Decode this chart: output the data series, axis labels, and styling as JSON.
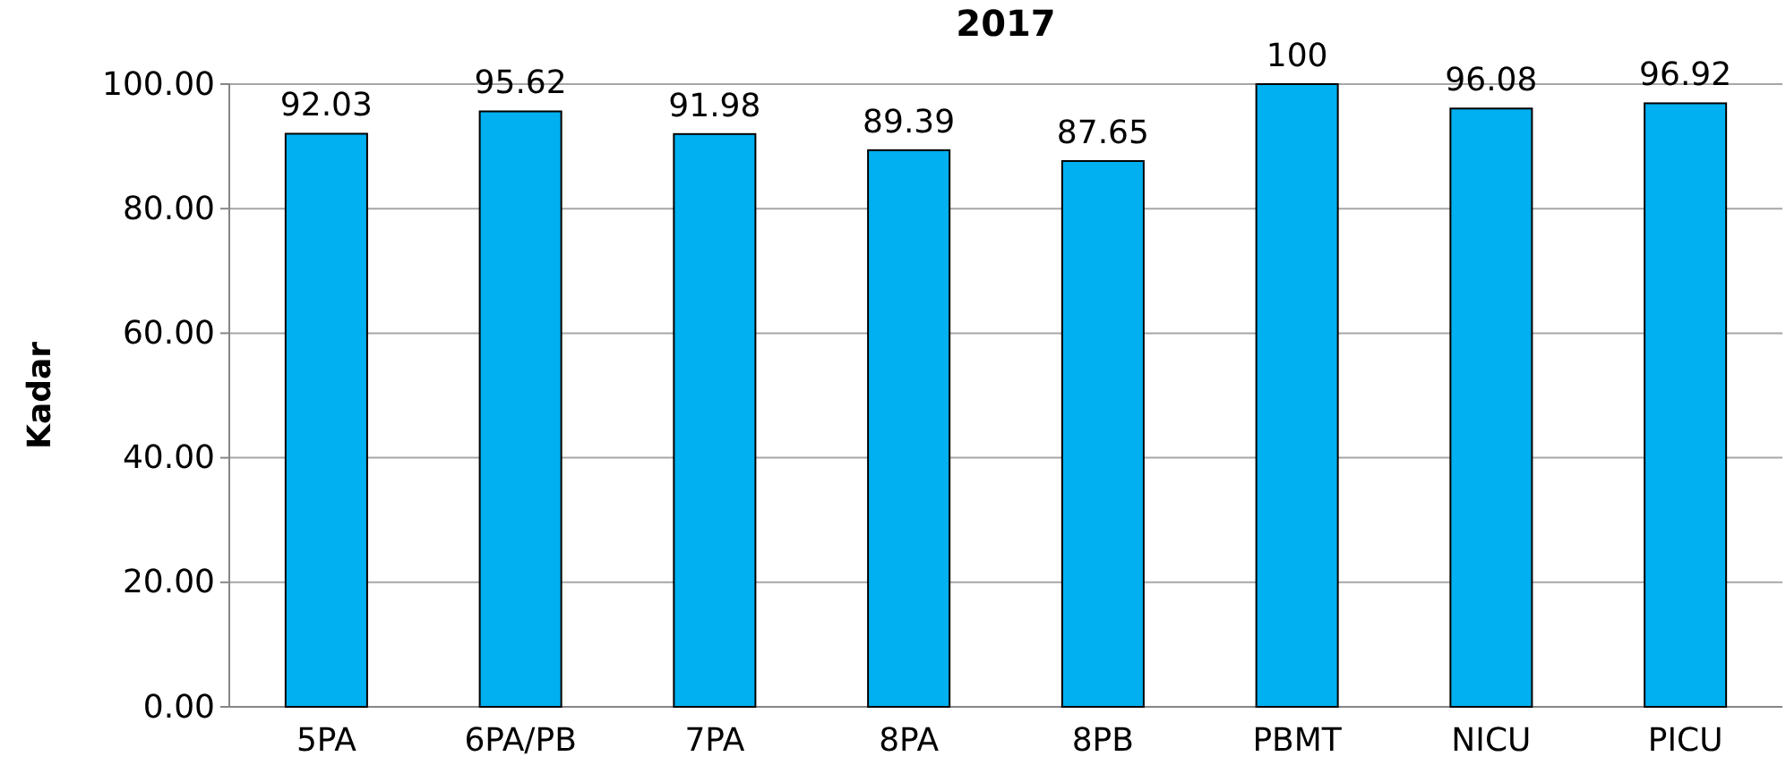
{
  "chart_data": {
    "type": "bar",
    "title": "2017",
    "ylabel": "Kadar",
    "categories": [
      "5PA",
      "6PA/PB",
      "7PA",
      "8PA",
      "8PB",
      "PBMT",
      "NICU",
      "PICU"
    ],
    "values": [
      92.03,
      95.62,
      91.98,
      89.39,
      87.65,
      100,
      96.08,
      96.92
    ],
    "value_labels": [
      "92.03",
      "95.62",
      "91.98",
      "89.39",
      "87.65",
      "100",
      "96.08",
      "96.92"
    ],
    "color": "#00b0f0",
    "ylim": [
      0,
      100
    ],
    "yticks": [
      {
        "value": 0,
        "label": "0.00"
      },
      {
        "value": 20,
        "label": "20.00"
      },
      {
        "value": 40,
        "label": "40.00"
      },
      {
        "value": 60,
        "label": "60.00"
      },
      {
        "value": 80,
        "label": "80.00"
      },
      {
        "value": 100,
        "label": "100.00"
      }
    ],
    "grid": "y"
  }
}
